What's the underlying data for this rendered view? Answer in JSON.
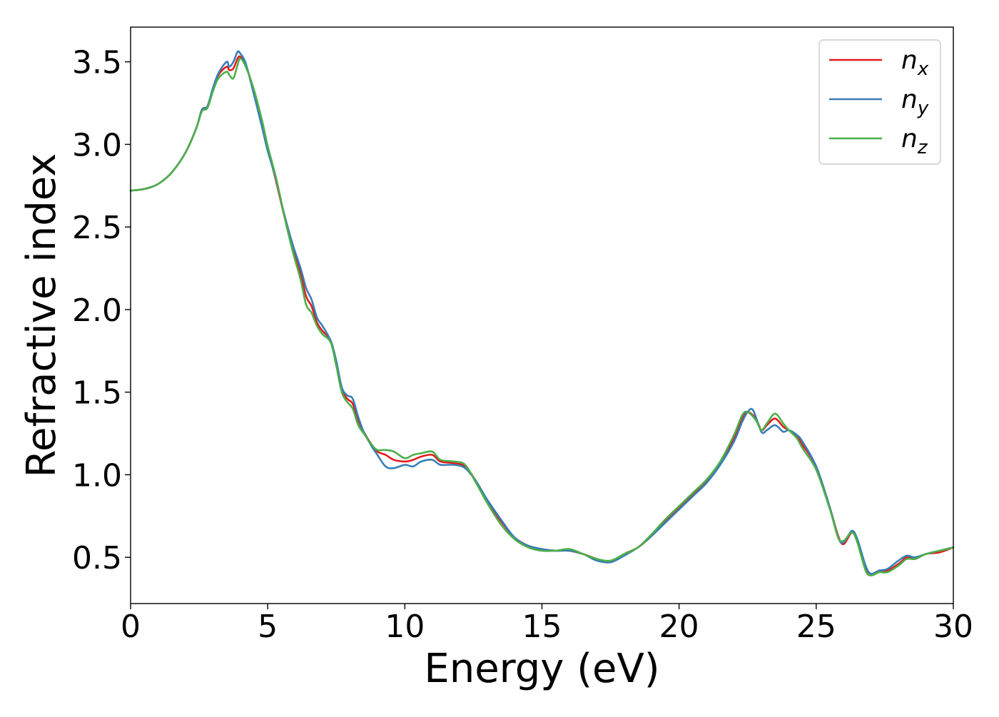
{
  "chart_data": {
    "type": "line",
    "title": "",
    "xlabel": "Energy (eV)",
    "ylabel": "Refractive index",
    "xlim": [
      0,
      30
    ],
    "ylim": [
      0.22,
      3.71
    ],
    "xticks": [
      0,
      5,
      10,
      15,
      20,
      25,
      30
    ],
    "xtick_labels": [
      "0",
      "5",
      "10",
      "15",
      "20",
      "25",
      "30"
    ],
    "yticks": [
      0.5,
      1.0,
      1.5,
      2.0,
      2.5,
      3.0,
      3.5
    ],
    "ytick_labels": [
      "0.5",
      "1.0",
      "1.5",
      "2.0",
      "2.5",
      "3.0",
      "3.5"
    ],
    "grid": false,
    "legend_position": "top-right",
    "series": [
      {
        "name": "n_x",
        "label_base": "n",
        "label_sub": "x",
        "color": "#e41a1c",
        "points": [
          [
            0,
            2.72
          ],
          [
            0.5,
            2.73
          ],
          [
            1,
            2.76
          ],
          [
            1.5,
            2.83
          ],
          [
            2,
            2.95
          ],
          [
            2.4,
            3.1
          ],
          [
            2.6,
            3.21
          ],
          [
            2.8,
            3.23
          ],
          [
            3,
            3.33
          ],
          [
            3.2,
            3.42
          ],
          [
            3.5,
            3.47
          ],
          [
            3.6,
            3.45
          ],
          [
            3.75,
            3.46
          ],
          [
            3.9,
            3.52
          ],
          [
            4,
            3.53
          ],
          [
            4.2,
            3.48
          ],
          [
            4.5,
            3.32
          ],
          [
            4.8,
            3.12
          ],
          [
            5,
            2.98
          ],
          [
            5.3,
            2.78
          ],
          [
            5.6,
            2.57
          ],
          [
            5.9,
            2.38
          ],
          [
            6.2,
            2.22
          ],
          [
            6.4,
            2.08
          ],
          [
            6.6,
            2.02
          ],
          [
            6.8,
            1.92
          ],
          [
            7,
            1.87
          ],
          [
            7.3,
            1.81
          ],
          [
            7.5,
            1.68
          ],
          [
            7.7,
            1.52
          ],
          [
            7.9,
            1.46
          ],
          [
            8.1,
            1.43
          ],
          [
            8.3,
            1.33
          ],
          [
            8.5,
            1.26
          ],
          [
            8.8,
            1.18
          ],
          [
            9,
            1.14
          ],
          [
            9.3,
            1.12
          ],
          [
            9.6,
            1.09
          ],
          [
            10,
            1.08
          ],
          [
            10.3,
            1.09
          ],
          [
            10.6,
            1.11
          ],
          [
            11,
            1.12
          ],
          [
            11.3,
            1.08
          ],
          [
            11.8,
            1.07
          ],
          [
            12.2,
            1.05
          ],
          [
            12.6,
            0.96
          ],
          [
            13,
            0.84
          ],
          [
            13.5,
            0.72
          ],
          [
            14,
            0.62
          ],
          [
            14.5,
            0.57
          ],
          [
            15,
            0.55
          ],
          [
            15.5,
            0.54
          ],
          [
            16,
            0.54
          ],
          [
            16.5,
            0.52
          ],
          [
            17,
            0.49
          ],
          [
            17.5,
            0.47
          ],
          [
            18,
            0.52
          ],
          [
            18.5,
            0.56
          ],
          [
            19,
            0.63
          ],
          [
            19.5,
            0.72
          ],
          [
            20,
            0.8
          ],
          [
            20.5,
            0.88
          ],
          [
            21,
            0.96
          ],
          [
            21.5,
            1.07
          ],
          [
            22,
            1.22
          ],
          [
            22.3,
            1.34
          ],
          [
            22.5,
            1.38
          ],
          [
            22.8,
            1.34
          ],
          [
            23,
            1.27
          ],
          [
            23.2,
            1.3
          ],
          [
            23.5,
            1.34
          ],
          [
            23.8,
            1.29
          ],
          [
            24,
            1.27
          ],
          [
            24.3,
            1.23
          ],
          [
            24.5,
            1.18
          ],
          [
            25,
            1.05
          ],
          [
            25.5,
            0.8
          ],
          [
            25.8,
            0.63
          ],
          [
            26,
            0.58
          ],
          [
            26.3,
            0.65
          ],
          [
            26.5,
            0.6
          ],
          [
            26.8,
            0.44
          ],
          [
            27,
            0.4
          ],
          [
            27.3,
            0.42
          ],
          [
            27.6,
            0.42
          ],
          [
            28,
            0.46
          ],
          [
            28.3,
            0.5
          ],
          [
            28.6,
            0.49
          ],
          [
            29,
            0.52
          ],
          [
            29.5,
            0.53
          ],
          [
            30,
            0.56
          ]
        ]
      },
      {
        "name": "n_y",
        "label_base": "n",
        "label_sub": "y",
        "color": "#377eb8",
        "points": [
          [
            0,
            2.72
          ],
          [
            0.5,
            2.73
          ],
          [
            1,
            2.76
          ],
          [
            1.5,
            2.83
          ],
          [
            2,
            2.95
          ],
          [
            2.4,
            3.1
          ],
          [
            2.6,
            3.21
          ],
          [
            2.8,
            3.23
          ],
          [
            3,
            3.34
          ],
          [
            3.2,
            3.43
          ],
          [
            3.5,
            3.5
          ],
          [
            3.6,
            3.47
          ],
          [
            3.75,
            3.5
          ],
          [
            3.9,
            3.56
          ],
          [
            4,
            3.55
          ],
          [
            4.2,
            3.49
          ],
          [
            4.5,
            3.3
          ],
          [
            4.8,
            3.1
          ],
          [
            5,
            2.96
          ],
          [
            5.3,
            2.79
          ],
          [
            5.6,
            2.58
          ],
          [
            5.9,
            2.4
          ],
          [
            6.2,
            2.25
          ],
          [
            6.4,
            2.13
          ],
          [
            6.6,
            2.06
          ],
          [
            6.8,
            1.95
          ],
          [
            7,
            1.9
          ],
          [
            7.3,
            1.81
          ],
          [
            7.5,
            1.69
          ],
          [
            7.7,
            1.53
          ],
          [
            7.9,
            1.48
          ],
          [
            8.1,
            1.46
          ],
          [
            8.3,
            1.35
          ],
          [
            8.5,
            1.26
          ],
          [
            8.8,
            1.17
          ],
          [
            9,
            1.12
          ],
          [
            9.3,
            1.05
          ],
          [
            9.6,
            1.04
          ],
          [
            10,
            1.06
          ],
          [
            10.3,
            1.05
          ],
          [
            10.6,
            1.08
          ],
          [
            11,
            1.09
          ],
          [
            11.3,
            1.06
          ],
          [
            11.8,
            1.06
          ],
          [
            12.2,
            1.04
          ],
          [
            12.6,
            0.96
          ],
          [
            13,
            0.85
          ],
          [
            13.5,
            0.73
          ],
          [
            14,
            0.62
          ],
          [
            14.5,
            0.57
          ],
          [
            15,
            0.55
          ],
          [
            15.5,
            0.54
          ],
          [
            16,
            0.54
          ],
          [
            16.5,
            0.52
          ],
          [
            17,
            0.48
          ],
          [
            17.5,
            0.47
          ],
          [
            18,
            0.51
          ],
          [
            18.5,
            0.56
          ],
          [
            19,
            0.63
          ],
          [
            19.5,
            0.71
          ],
          [
            20,
            0.79
          ],
          [
            20.5,
            0.87
          ],
          [
            21,
            0.95
          ],
          [
            21.5,
            1.06
          ],
          [
            22,
            1.2
          ],
          [
            22.3,
            1.32
          ],
          [
            22.5,
            1.38
          ],
          [
            22.7,
            1.39
          ],
          [
            23,
            1.26
          ],
          [
            23.2,
            1.27
          ],
          [
            23.5,
            1.3
          ],
          [
            23.8,
            1.26
          ],
          [
            24,
            1.27
          ],
          [
            24.3,
            1.24
          ],
          [
            24.5,
            1.2
          ],
          [
            25,
            1.05
          ],
          [
            25.5,
            0.8
          ],
          [
            25.8,
            0.62
          ],
          [
            26,
            0.59
          ],
          [
            26.3,
            0.66
          ],
          [
            26.5,
            0.61
          ],
          [
            26.8,
            0.45
          ],
          [
            27,
            0.4
          ],
          [
            27.3,
            0.42
          ],
          [
            27.6,
            0.43
          ],
          [
            28,
            0.48
          ],
          [
            28.3,
            0.51
          ],
          [
            28.6,
            0.5
          ],
          [
            29,
            0.52
          ],
          [
            29.5,
            0.54
          ],
          [
            30,
            0.56
          ]
        ]
      },
      {
        "name": "n_z",
        "label_base": "n",
        "label_sub": "z",
        "color": "#4daf4a",
        "points": [
          [
            0,
            2.72
          ],
          [
            0.5,
            2.73
          ],
          [
            1,
            2.76
          ],
          [
            1.5,
            2.83
          ],
          [
            2,
            2.95
          ],
          [
            2.4,
            3.1
          ],
          [
            2.6,
            3.2
          ],
          [
            2.8,
            3.22
          ],
          [
            3,
            3.32
          ],
          [
            3.2,
            3.4
          ],
          [
            3.5,
            3.44
          ],
          [
            3.6,
            3.42
          ],
          [
            3.75,
            3.4
          ],
          [
            3.9,
            3.48
          ],
          [
            4,
            3.52
          ],
          [
            4.2,
            3.47
          ],
          [
            4.5,
            3.33
          ],
          [
            4.8,
            3.14
          ],
          [
            5,
            2.99
          ],
          [
            5.3,
            2.8
          ],
          [
            5.6,
            2.57
          ],
          [
            5.9,
            2.36
          ],
          [
            6.2,
            2.18
          ],
          [
            6.4,
            2.03
          ],
          [
            6.6,
            1.98
          ],
          [
            6.8,
            1.9
          ],
          [
            7,
            1.85
          ],
          [
            7.3,
            1.8
          ],
          [
            7.5,
            1.66
          ],
          [
            7.7,
            1.5
          ],
          [
            7.9,
            1.44
          ],
          [
            8.1,
            1.4
          ],
          [
            8.3,
            1.3
          ],
          [
            8.5,
            1.25
          ],
          [
            8.8,
            1.18
          ],
          [
            9,
            1.15
          ],
          [
            9.3,
            1.15
          ],
          [
            9.6,
            1.14
          ],
          [
            10,
            1.1
          ],
          [
            10.3,
            1.12
          ],
          [
            10.6,
            1.13
          ],
          [
            11,
            1.14
          ],
          [
            11.3,
            1.09
          ],
          [
            11.8,
            1.08
          ],
          [
            12.2,
            1.06
          ],
          [
            12.6,
            0.95
          ],
          [
            13,
            0.83
          ],
          [
            13.5,
            0.7
          ],
          [
            14,
            0.61
          ],
          [
            14.5,
            0.56
          ],
          [
            15,
            0.54
          ],
          [
            15.5,
            0.54
          ],
          [
            16,
            0.55
          ],
          [
            16.5,
            0.52
          ],
          [
            17,
            0.49
          ],
          [
            17.5,
            0.48
          ],
          [
            18,
            0.52
          ],
          [
            18.5,
            0.56
          ],
          [
            19,
            0.64
          ],
          [
            19.5,
            0.73
          ],
          [
            20,
            0.81
          ],
          [
            20.5,
            0.89
          ],
          [
            21,
            0.97
          ],
          [
            21.5,
            1.08
          ],
          [
            22,
            1.24
          ],
          [
            22.3,
            1.36
          ],
          [
            22.5,
            1.38
          ],
          [
            22.8,
            1.33
          ],
          [
            23,
            1.27
          ],
          [
            23.2,
            1.31
          ],
          [
            23.5,
            1.37
          ],
          [
            23.8,
            1.31
          ],
          [
            24,
            1.27
          ],
          [
            24.3,
            1.22
          ],
          [
            24.5,
            1.16
          ],
          [
            25,
            1.03
          ],
          [
            25.5,
            0.79
          ],
          [
            25.8,
            0.62
          ],
          [
            26,
            0.6
          ],
          [
            26.3,
            0.65
          ],
          [
            26.5,
            0.59
          ],
          [
            26.8,
            0.42
          ],
          [
            27,
            0.39
          ],
          [
            27.3,
            0.41
          ],
          [
            27.6,
            0.41
          ],
          [
            28,
            0.45
          ],
          [
            28.3,
            0.49
          ],
          [
            28.6,
            0.49
          ],
          [
            29,
            0.52
          ],
          [
            29.5,
            0.54
          ],
          [
            30,
            0.56
          ]
        ]
      }
    ]
  }
}
